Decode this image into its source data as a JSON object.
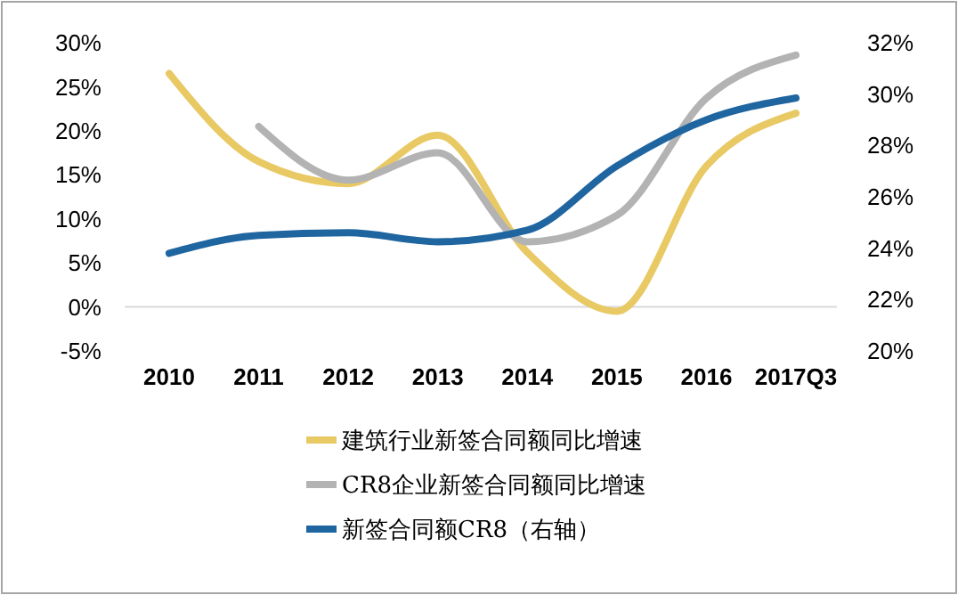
{
  "chart_data": {
    "type": "line",
    "categories": [
      "2010",
      "2011",
      "2012",
      "2013",
      "2014",
      "2015",
      "2016",
      "2017Q3"
    ],
    "series": [
      {
        "name": "建筑行业新签合同额同比增速",
        "color": "#e8c964",
        "values": [
          26.5,
          16.5,
          14,
          19.5,
          6.2,
          -0.5,
          16,
          22
        ]
      },
      {
        "name": "CR8企业新签合同额同比增速",
        "color": "#b3b3b3",
        "values": [
          null,
          20.5,
          14.4,
          17.5,
          7.4,
          10.4,
          23.7,
          28.6
        ]
      },
      {
        "name": "新签合同额CR8（右轴）",
        "color": "#1f65a0",
        "axis": "y2",
        "values": [
          23.8,
          24.5,
          24.6,
          24.25,
          24.7,
          27.2,
          29.0,
          29.85
        ]
      }
    ],
    "ylim": [
      -5,
      30
    ],
    "yticks": [
      {
        "value": -5,
        "label": "-5%"
      },
      {
        "value": 0,
        "label": "0%"
      },
      {
        "value": 5,
        "label": "5%"
      },
      {
        "value": 10,
        "label": "10%"
      },
      {
        "value": 15,
        "label": "15%"
      },
      {
        "value": 20,
        "label": "20%"
      },
      {
        "value": 25,
        "label": "25%"
      },
      {
        "value": 30,
        "label": "30%"
      }
    ],
    "y2lim": [
      20,
      32
    ],
    "y2ticks": [
      {
        "value": 20,
        "label": "20%"
      },
      {
        "value": 22,
        "label": "22%"
      },
      {
        "value": 24,
        "label": "24%"
      },
      {
        "value": 26,
        "label": "26%"
      },
      {
        "value": 28,
        "label": "28%"
      },
      {
        "value": 30,
        "label": "30%"
      },
      {
        "value": 32,
        "label": "32%"
      }
    ],
    "legend": "bottom",
    "grid": false,
    "marker": "none",
    "line_style": "solid"
  }
}
